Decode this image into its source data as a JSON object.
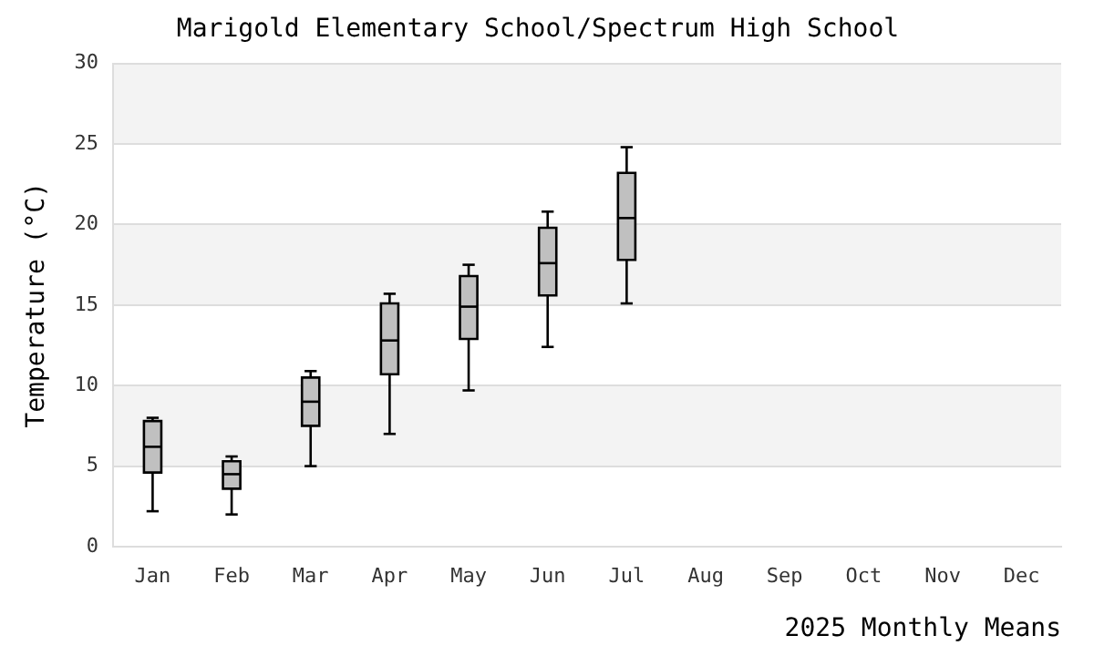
{
  "chart_data": {
    "type": "box",
    "title": "Marigold Elementary School/Spectrum High School",
    "xlabel": "2025 Monthly Means",
    "ylabel": "Temperature (°C)",
    "categories": [
      "Jan",
      "Feb",
      "Mar",
      "Apr",
      "May",
      "Jun",
      "Jul",
      "Aug",
      "Sep",
      "Oct",
      "Nov",
      "Dec"
    ],
    "boxes": [
      {
        "low": 2.2,
        "q1": 4.6,
        "median": 6.2,
        "q3": 7.8,
        "high": 8.0
      },
      {
        "low": 2.0,
        "q1": 3.6,
        "median": 4.5,
        "q3": 5.3,
        "high": 5.6
      },
      {
        "low": 5.0,
        "q1": 7.5,
        "median": 9.0,
        "q3": 10.5,
        "high": 10.9
      },
      {
        "low": 7.0,
        "q1": 10.7,
        "median": 12.8,
        "q3": 15.1,
        "high": 15.7
      },
      {
        "low": 9.7,
        "q1": 12.9,
        "median": 14.9,
        "q3": 16.8,
        "high": 17.5
      },
      {
        "low": 12.4,
        "q1": 15.6,
        "median": 17.6,
        "q3": 19.8,
        "high": 20.8
      },
      {
        "low": 15.1,
        "q1": 17.8,
        "median": 20.4,
        "q3": 23.2,
        "high": 24.8
      },
      null,
      null,
      null,
      null,
      null
    ],
    "color": "#c0c0c0",
    "ylim": [
      0,
      30
    ],
    "yticks": [
      0,
      5,
      10,
      15,
      20,
      25,
      30
    ],
    "grid": true
  }
}
